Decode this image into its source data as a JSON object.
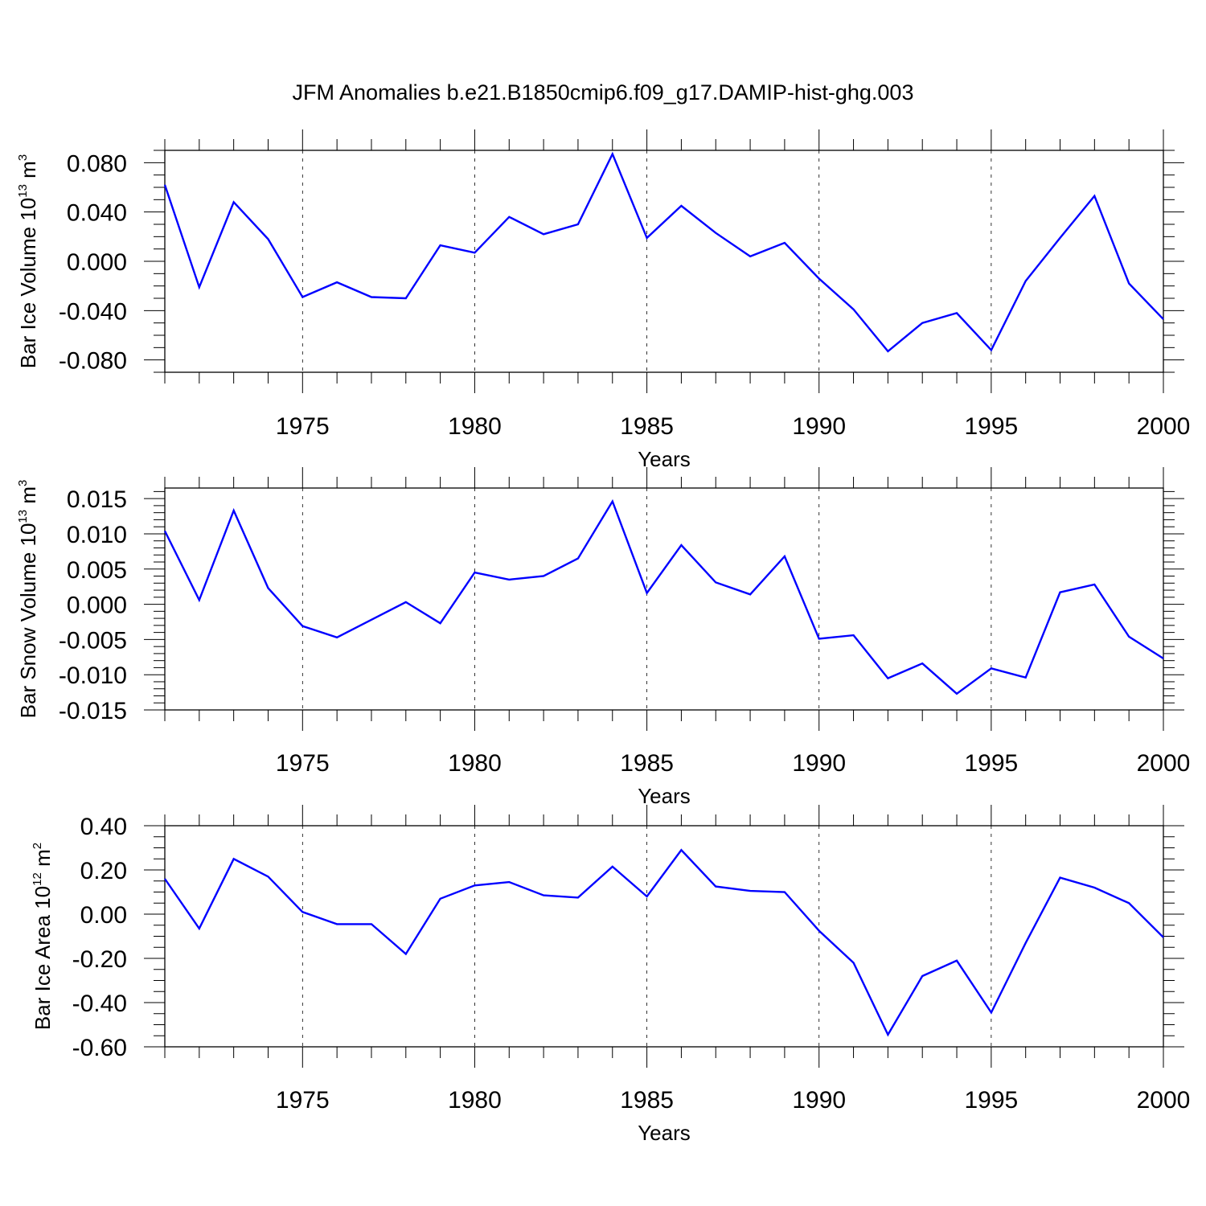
{
  "title": "JFM Anomalies b.e21.B1850cmip6.f09_g17.DAMIP-hist-ghg.003",
  "line_color": "#0000ff",
  "chart_data": [
    {
      "type": "line",
      "ylabel": "Bar Ice Volume",
      "yunit": {
        "base": "10",
        "exp": "13",
        "unit": "m",
        "unit_exp": "3"
      },
      "xlabel": "Years",
      "xlim": [
        1971,
        2000
      ],
      "ylim": [
        -0.09,
        0.09
      ],
      "xticks": [
        1975,
        1980,
        1985,
        1990,
        1995,
        2000
      ],
      "xtick_labels": [
        "1975",
        "1980",
        "1985",
        "1990",
        "1995",
        "2000"
      ],
      "yticks": [
        0.08,
        0.04,
        0.0,
        -0.04,
        -0.08
      ],
      "ytick_labels": [
        "0.080",
        "0.040",
        "0.000",
        "-0.040",
        "-0.080"
      ],
      "yminor_step": 0.01,
      "grid": "vertical dashed at major x ticks",
      "x": [
        1971,
        1972,
        1973,
        1974,
        1975,
        1976,
        1977,
        1978,
        1979,
        1980,
        1981,
        1982,
        1983,
        1984,
        1985,
        1986,
        1987,
        1988,
        1989,
        1990,
        1991,
        1992,
        1993,
        1994,
        1995,
        1996,
        1997,
        1998,
        1999,
        2000
      ],
      "series": [
        {
          "values": [
            0.062,
            -0.021,
            0.048,
            0.018,
            -0.029,
            -0.017,
            -0.029,
            -0.03,
            0.013,
            0.007,
            0.036,
            0.022,
            0.03,
            0.087,
            0.019,
            0.045,
            0.023,
            0.004,
            0.015,
            -0.014,
            -0.039,
            -0.073,
            -0.05,
            -0.042,
            -0.072,
            -0.016,
            0.019,
            0.053,
            -0.018,
            -0.047
          ]
        }
      ]
    },
    {
      "type": "line",
      "ylabel": "Bar Snow Volume",
      "yunit": {
        "base": "10",
        "exp": "13",
        "unit": "m",
        "unit_exp": "3"
      },
      "xlabel": "Years",
      "xlim": [
        1971,
        2000
      ],
      "ylim": [
        -0.015,
        0.0165
      ],
      "xticks": [
        1975,
        1980,
        1985,
        1990,
        1995,
        2000
      ],
      "xtick_labels": [
        "1975",
        "1980",
        "1985",
        "1990",
        "1995",
        "2000"
      ],
      "yticks": [
        0.015,
        0.01,
        0.005,
        0.0,
        -0.005,
        -0.01,
        -0.015
      ],
      "ytick_labels": [
        "0.015",
        "0.010",
        "0.005",
        "0.000",
        "-0.005",
        "-0.010",
        "-0.015"
      ],
      "yminor_step": 0.001,
      "grid": "vertical dashed at major x ticks",
      "x": [
        1971,
        1972,
        1973,
        1974,
        1975,
        1976,
        1977,
        1978,
        1979,
        1980,
        1981,
        1982,
        1983,
        1984,
        1985,
        1986,
        1987,
        1988,
        1989,
        1990,
        1991,
        1992,
        1993,
        1994,
        1995,
        1996,
        1997,
        1998,
        1999,
        2000
      ],
      "series": [
        {
          "values": [
            0.0104,
            0.0006,
            0.0133,
            0.0023,
            -0.0031,
            -0.0047,
            -0.0022,
            0.0003,
            -0.0027,
            0.0045,
            0.0035,
            0.004,
            0.0065,
            0.0146,
            0.0016,
            0.0084,
            0.0031,
            0.0014,
            0.0068,
            -0.0049,
            -0.0044,
            -0.0105,
            -0.0084,
            -0.0127,
            -0.0091,
            -0.0104,
            0.0017,
            0.0028,
            -0.0046,
            -0.0077
          ]
        }
      ]
    },
    {
      "type": "line",
      "ylabel": "Bar Ice Area",
      "yunit": {
        "base": "10",
        "exp": "12",
        "unit": "m",
        "unit_exp": "2"
      },
      "xlabel": "Years",
      "xlim": [
        1971,
        2000
      ],
      "ylim": [
        -0.6,
        0.4
      ],
      "xticks": [
        1975,
        1980,
        1985,
        1990,
        1995,
        2000
      ],
      "xtick_labels": [
        "1975",
        "1980",
        "1985",
        "1990",
        "1995",
        "2000"
      ],
      "yticks": [
        0.4,
        0.2,
        0.0,
        -0.2,
        -0.4,
        -0.6
      ],
      "ytick_labels": [
        "0.40",
        "0.20",
        "0.00",
        "-0.20",
        "-0.40",
        "-0.60"
      ],
      "yminor_step": 0.05,
      "grid": "vertical dashed at major x ticks",
      "x": [
        1971,
        1972,
        1973,
        1974,
        1975,
        1976,
        1977,
        1978,
        1979,
        1980,
        1981,
        1982,
        1983,
        1984,
        1985,
        1986,
        1987,
        1988,
        1989,
        1990,
        1991,
        1992,
        1993,
        1994,
        1995,
        1996,
        1997,
        1998,
        1999,
        2000
      ],
      "series": [
        {
          "values": [
            0.16,
            -0.065,
            0.25,
            0.17,
            0.01,
            -0.045,
            -0.045,
            -0.18,
            0.07,
            0.13,
            0.145,
            0.085,
            0.075,
            0.215,
            0.08,
            0.29,
            0.125,
            0.105,
            0.1,
            -0.075,
            -0.22,
            -0.545,
            -0.28,
            -0.21,
            -0.445,
            -0.13,
            0.165,
            0.12,
            0.05,
            -0.105
          ]
        }
      ]
    }
  ]
}
